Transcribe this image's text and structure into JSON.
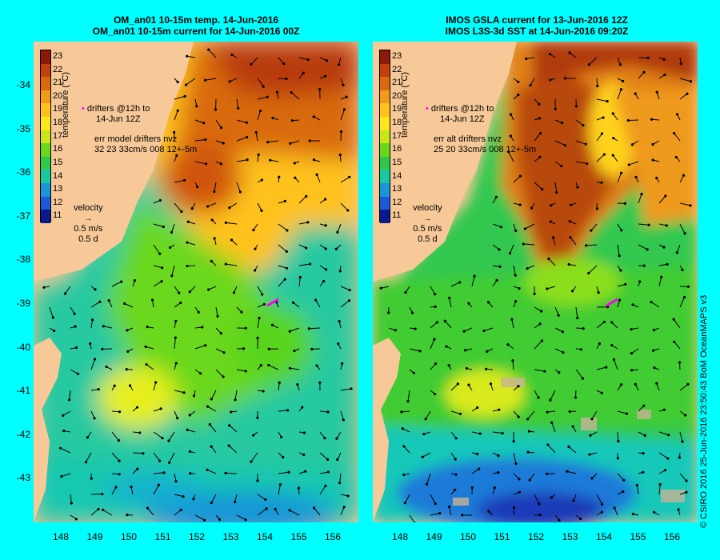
{
  "left_panel": {
    "title_line1": "OM_an01 10-15m temp. 14-Jun-2016",
    "title_line2": "OM_an01 10-15m current for 14-Jun-2016 00Z",
    "drifters_label": "drifters @12h to",
    "drifters_date": "14-Jun 12Z",
    "err_line1": "err model drifters nvz",
    "err_line2": "32 23 33cm/s 008 12+-5m",
    "velocity_label": "velocity",
    "velocity_speed": "0.5 m/s",
    "velocity_time": "0.5 d"
  },
  "right_panel": {
    "title_line1": "IMOS GSLA current for 13-Jun-2016 12Z",
    "title_line2": "IMOS L3S-3d SST at 14-Jun-2016 09:20Z",
    "drifters_label": "drifters @12h to",
    "drifters_date": "14-Jun 12Z",
    "err_line1": "err alt drifters nvz",
    "err_line2": "25 20 33cm/s 008 12+-5m",
    "velocity_label": "velocity",
    "velocity_speed": "0.5 m/s",
    "velocity_time": "0.5 d"
  },
  "colorbar": {
    "title": "temperature (°C)",
    "labels": [
      "23",
      "22",
      "21",
      "20",
      "19",
      "18",
      "17",
      "16",
      "15",
      "14",
      "13",
      "12",
      "11"
    ],
    "colors": [
      "#8b1a0a",
      "#c0410c",
      "#d96a10",
      "#ef9a1a",
      "#ffc21a",
      "#ffe61a",
      "#c8e61a",
      "#6ad81a",
      "#2ec84a",
      "#18c8a0",
      "#1896d8",
      "#1a5ad8",
      "#0a1a8c"
    ]
  },
  "y_ticks": [
    "-34",
    "-35",
    "-36",
    "-37",
    "-38",
    "-39",
    "-40",
    "-41",
    "-42",
    "-43"
  ],
  "x_ticks": [
    "148",
    "149",
    "150",
    "151",
    "152",
    "153",
    "154",
    "155",
    "156"
  ],
  "copyright": "© CSIRO 2016  25-Jun-2016 23:50:43 BoM OceanMAPS v3"
}
